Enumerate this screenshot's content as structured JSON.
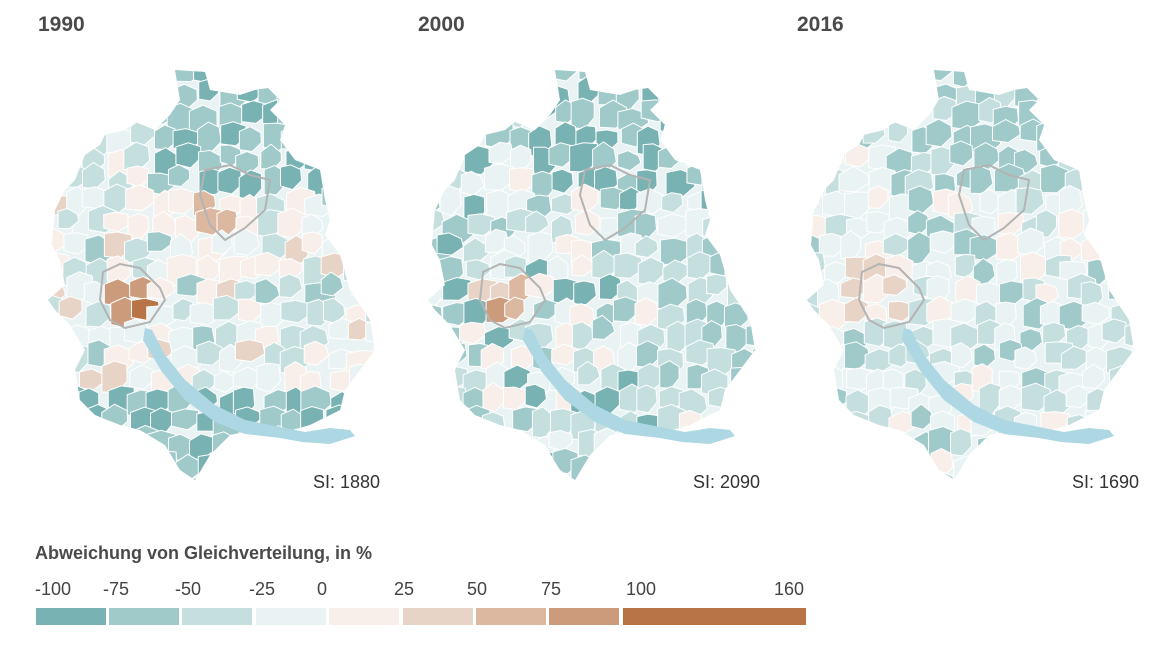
{
  "panels": [
    {
      "year": "1990",
      "si_label": "SI: 1880"
    },
    {
      "year": "2000",
      "si_label": "SI: 2090"
    },
    {
      "year": "2016",
      "si_label": "SI: 1690"
    }
  ],
  "legend": {
    "title": "Abweichung von Gleichverteilung, in %",
    "ticks": [
      "-100",
      "-75",
      "-50",
      "-25",
      "0",
      "25",
      "50",
      "75",
      "100",
      "160"
    ],
    "bins": [
      {
        "range": "-100 to -75",
        "color": "#79b2b3"
      },
      {
        "range": "-75 to -50",
        "color": "#a0c9c9"
      },
      {
        "range": "-50 to -25",
        "color": "#c5dfdf"
      },
      {
        "range": "-25 to 0",
        "color": "#eaf3f3"
      },
      {
        "range": "0 to 25",
        "color": "#f8efea"
      },
      {
        "range": "25 to 50",
        "color": "#e8d4c6"
      },
      {
        "range": "50 to 75",
        "color": "#ddb8a0"
      },
      {
        "range": "75 to 100",
        "color": "#cc9b7b"
      },
      {
        "range": "100 to 160",
        "color": "#b87446"
      }
    ]
  },
  "colors": {
    "lake": "#acd7e3",
    "city_outline": "#b3b3b3",
    "border": "#ffffff"
  },
  "chart_data": {
    "type": "choropleth",
    "title": "Abweichung von Gleichverteilung, in %",
    "maps": [
      {
        "year": "1990",
        "segregation_index": 1880
      },
      {
        "year": "2000",
        "segregation_index": 2090
      },
      {
        "year": "2016",
        "segregation_index": 1690
      }
    ],
    "legend_breaks": [
      -100,
      -75,
      -50,
      -25,
      0,
      25,
      50,
      75,
      100,
      160
    ],
    "legend_position": "bottom-left"
  }
}
